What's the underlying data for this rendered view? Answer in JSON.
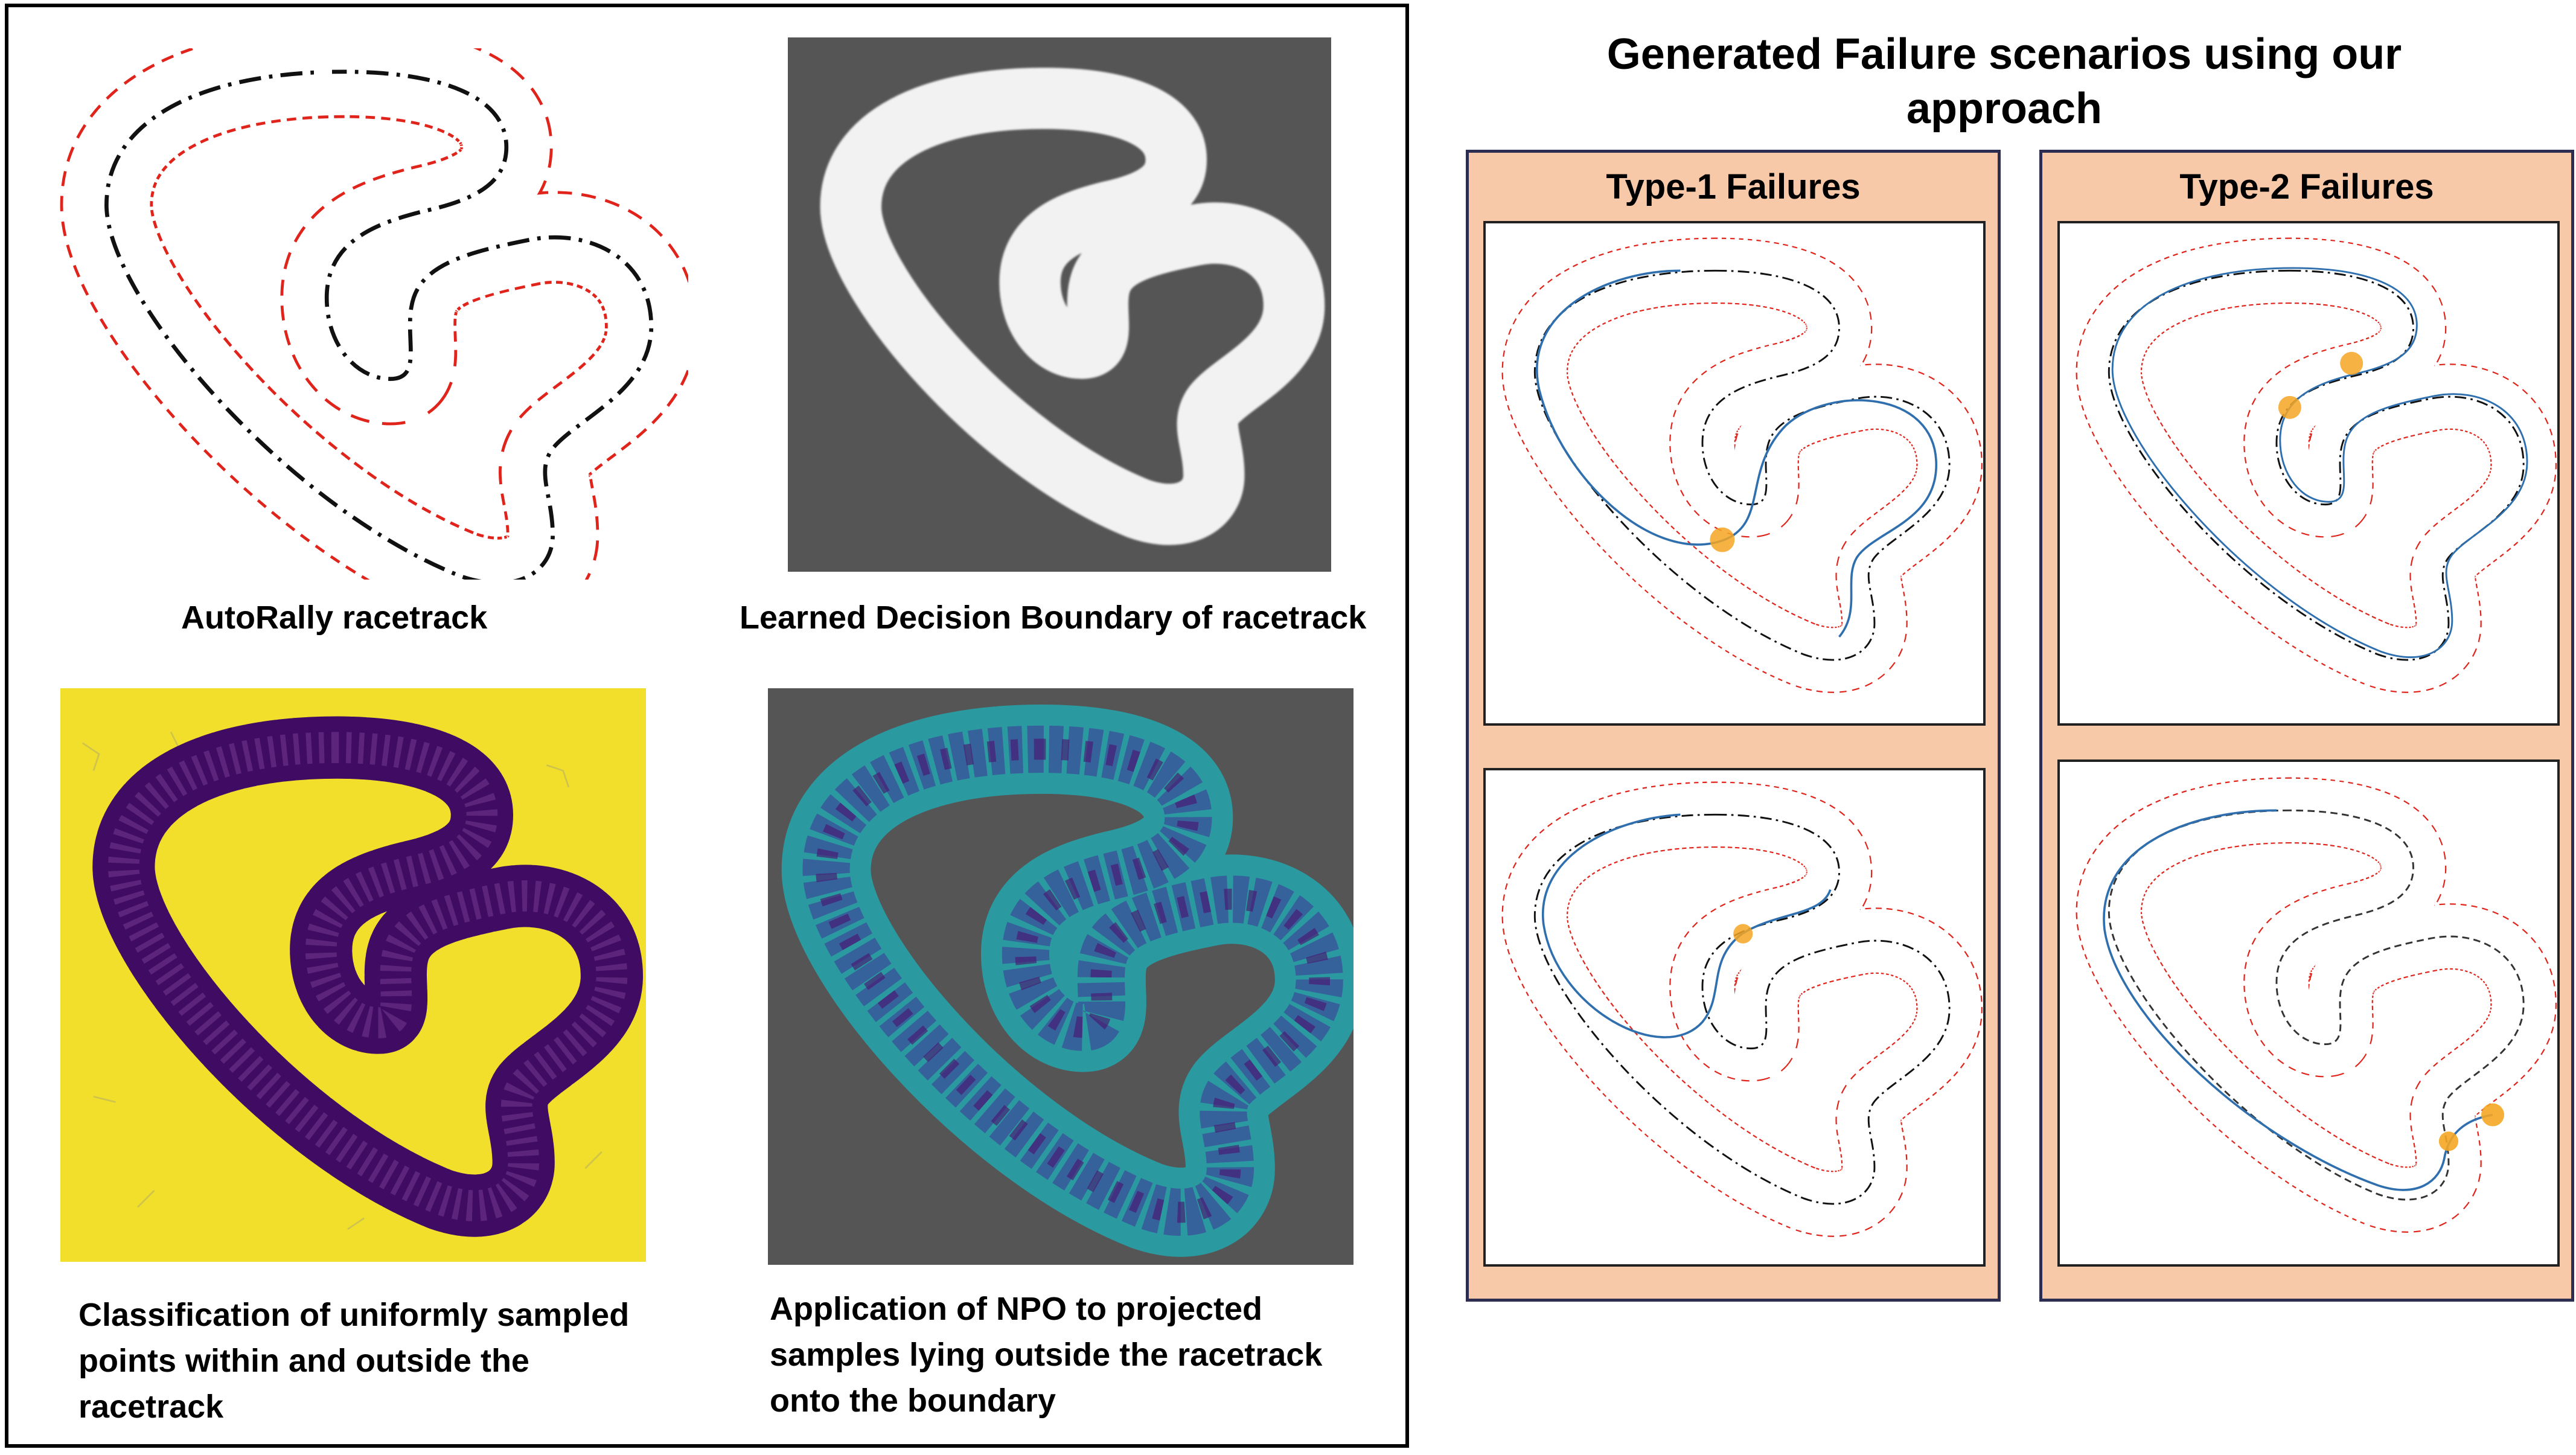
{
  "left_panel": {
    "captions": {
      "autorally": "AutoRally racetrack",
      "decision_boundary": "Learned Decision Boundary of racetrack",
      "classification": [
        "Classification of uniformly sampled",
        "points within and outside the",
        "racetrack"
      ],
      "npo": [
        "Application of NPO to projected",
        "samples lying outside the racetrack",
        "onto the boundary"
      ]
    }
  },
  "right_panel": {
    "title": [
      "Generated Failure scenarios using our",
      "approach"
    ],
    "type1_title": "Type-1 Failures",
    "type2_title": "Type-2 Failures"
  },
  "colors": {
    "track_boundary": "#e0241b",
    "centerline": "#111111",
    "trajectory": "#2f6fae",
    "failure_marker": "#f5a623",
    "panel_background": "#f8c9a9",
    "sample_yellow": "#f2df2b",
    "sample_purple": "#4b0f6e",
    "boundary_teal": "#2a9aa0",
    "gray_background": "#555555"
  }
}
